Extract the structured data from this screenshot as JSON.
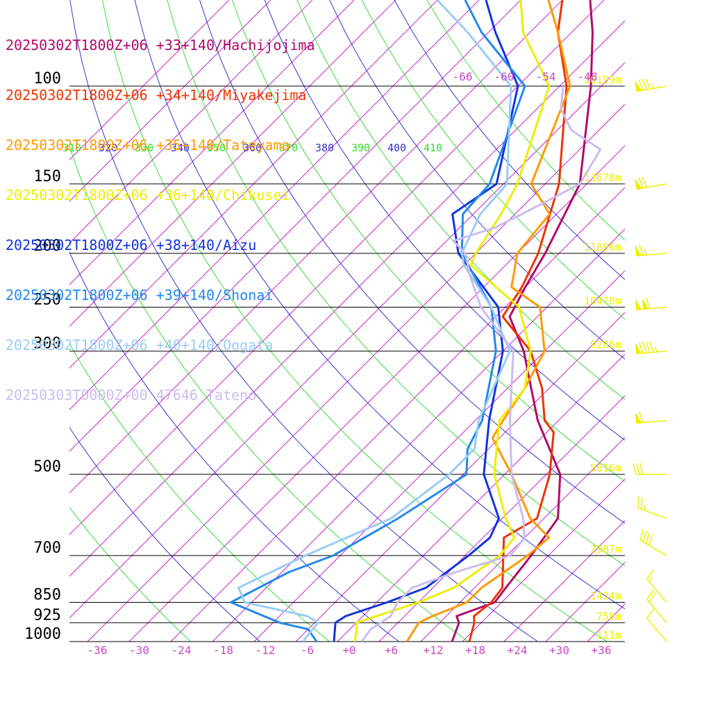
{
  "chart_data": {
    "type": "skew-t",
    "legend": [
      {
        "label": "20250302T1800Z+06 +33+140/Hachijojima",
        "color": "#b0086a"
      },
      {
        "label": "20250302T1800Z+06 +34+140/Miyakejima",
        "color": "#ee3300"
      },
      {
        "label": "20250302T1800Z+06 +35+140/Tateyama",
        "color": "#ff9900"
      },
      {
        "label": "20250302T1800Z+06 +36+140/Chikusei",
        "color": "#eeee00"
      },
      {
        "label": "20250302T1800Z+06 +38+140/Aizu",
        "color": "#1133dd"
      },
      {
        "label": "20250302T1800Z+06 +39+140/Shonai",
        "color": "#2288ee"
      },
      {
        "label": "20250302T1800Z+06 +40+140/Oogata",
        "color": "#99ccf5"
      },
      {
        "label": "20250303T0000Z+00 47646_Tateno",
        "color": "#ccbbee"
      }
    ],
    "pressure_levels": [
      {
        "p": 100,
        "label": "100",
        "height": "16199m"
      },
      {
        "p": 150,
        "label": "150",
        "height": "13678m"
      },
      {
        "p": 200,
        "label": "200",
        "height": "11896m"
      },
      {
        "p": 250,
        "label": "250",
        "height": "10470m"
      },
      {
        "p": 300,
        "label": "300",
        "height": "9286m"
      },
      {
        "p": 500,
        "label": "500",
        "height": "5616m"
      },
      {
        "p": 700,
        "label": "700",
        "height": "2987m"
      },
      {
        "p": 850,
        "label": "850",
        "height": "1434m"
      },
      {
        "p": 925,
        "label": "925",
        "height": "758m"
      },
      {
        "p": 1000,
        "label": "1000",
        "height": "111m"
      }
    ],
    "x_ticks": [
      "-36",
      "-30",
      "-24",
      "-18",
      "-12",
      "-6",
      "+0",
      "+6",
      "+12",
      "+18",
      "+24",
      "+30",
      "+36"
    ],
    "top_isotherm_labels": [
      "-66",
      "-60",
      "-54",
      "-48"
    ],
    "theta_labels": [
      {
        "text": "310",
        "color": "#33dd33"
      },
      {
        "text": "320",
        "color": "#3333cc"
      },
      {
        "text": "330",
        "color": "#33dd33"
      },
      {
        "text": "340",
        "color": "#3333cc"
      },
      {
        "text": "350",
        "color": "#33dd33"
      },
      {
        "text": "360",
        "color": "#3333cc"
      },
      {
        "text": "370",
        "color": "#33dd33"
      },
      {
        "text": "380",
        "color": "#3333cc"
      },
      {
        "text": "390",
        "color": "#33dd33"
      },
      {
        "text": "400",
        "color": "#3333cc"
      },
      {
        "text": "410",
        "color": "#33dd33"
      }
    ],
    "p_range": [
      1000,
      70
    ],
    "t_range": [
      -38,
      38
    ],
    "skew": "isotherms at 45 degrees",
    "grid": true,
    "colors": {
      "isotherm": "#cc22cc",
      "dry_adiabat_a": "#33dd33",
      "dry_adiabat_b": "#3333cc",
      "isobar": "#000000",
      "wind_barb": "#eeee00",
      "height_label": "#eeee00",
      "tick_label": "#cc44cc"
    },
    "profiles": [
      {
        "name": "Hachijojima",
        "color": "#b0086a",
        "points": [
          [
            1000,
            14.5
          ],
          [
            925,
            12.8
          ],
          [
            900,
            11.5
          ],
          [
            850,
            15.0
          ],
          [
            800,
            14.5
          ],
          [
            700,
            13.5
          ],
          [
            600,
            12.0
          ],
          [
            500,
            6.0
          ],
          [
            400,
            -5.0
          ],
          [
            300,
            -17.0
          ],
          [
            260,
            -24.0
          ],
          [
            230,
            -26.0
          ],
          [
            200,
            -28.0
          ],
          [
            150,
            -33.0
          ],
          [
            100,
            -45.5
          ],
          [
            80,
            -53.0
          ],
          [
            70,
            -58.0
          ]
        ]
      },
      {
        "name": "Miyakejima",
        "color": "#ee3300",
        "points": [
          [
            1000,
            17.0
          ],
          [
            925,
            15.0
          ],
          [
            900,
            14.0
          ],
          [
            850,
            14.5
          ],
          [
            800,
            14.0
          ],
          [
            700,
            9.5
          ],
          [
            650,
            7.0
          ],
          [
            600,
            9.0
          ],
          [
            500,
            4.5
          ],
          [
            420,
            -1.0
          ],
          [
            400,
            -4.0
          ],
          [
            350,
            -9.0
          ],
          [
            300,
            -16.0
          ],
          [
            260,
            -25.0
          ],
          [
            230,
            -26.5
          ],
          [
            200,
            -29.0
          ],
          [
            150,
            -36.0
          ],
          [
            100,
            -49.0
          ],
          [
            80,
            -58.0
          ],
          [
            70,
            -62.0
          ]
        ]
      },
      {
        "name": "Tateyama",
        "color": "#ff9900",
        "points": [
          [
            1000,
            8.0
          ],
          [
            925,
            7.0
          ],
          [
            900,
            8.0
          ],
          [
            850,
            11.0
          ],
          [
            800,
            11.0
          ],
          [
            700,
            13.0
          ],
          [
            650,
            13.5
          ],
          [
            600,
            8.0
          ],
          [
            500,
            -1.0
          ],
          [
            430,
            -9.0
          ],
          [
            400,
            -10.0
          ],
          [
            350,
            -11.5
          ],
          [
            300,
            -14.0
          ],
          [
            250,
            -21.0
          ],
          [
            230,
            -28.0
          ],
          [
            200,
            -32.0
          ],
          [
            170,
            -33.0
          ],
          [
            150,
            -40.0
          ],
          [
            100,
            -48.5
          ],
          [
            80,
            -58.0
          ],
          [
            70,
            -64.0
          ]
        ]
      },
      {
        "name": "Chikusei",
        "color": "#eeee00",
        "points": [
          [
            1000,
            0.5
          ],
          [
            950,
            -1.0
          ],
          [
            925,
            -2.0
          ],
          [
            850,
            4.0
          ],
          [
            800,
            7.0
          ],
          [
            700,
            9.0
          ],
          [
            650,
            8.5
          ],
          [
            600,
            4.5
          ],
          [
            500,
            -3.5
          ],
          [
            420,
            -9.0
          ],
          [
            400,
            -10.5
          ],
          [
            350,
            -11.5
          ],
          [
            300,
            -16.0
          ],
          [
            250,
            -24.0
          ],
          [
            210,
            -37.0
          ],
          [
            200,
            -38.0
          ],
          [
            170,
            -40.0
          ],
          [
            150,
            -42.0
          ],
          [
            100,
            -51.5
          ],
          [
            80,
            -63.0
          ],
          [
            70,
            -68.0
          ]
        ]
      },
      {
        "name": "Aizu",
        "color": "#1133dd",
        "points": [
          [
            1000,
            -2.5
          ],
          [
            925,
            -5.0
          ],
          [
            900,
            -4.5
          ],
          [
            850,
            -0.5
          ],
          [
            800,
            3.0
          ],
          [
            700,
            4.5
          ],
          [
            650,
            5.0
          ],
          [
            600,
            3.5
          ],
          [
            500,
            -5.0
          ],
          [
            400,
            -12.0
          ],
          [
            300,
            -20.0
          ],
          [
            250,
            -27.0
          ],
          [
            200,
            -40.5
          ],
          [
            170,
            -47.0
          ],
          [
            150,
            -45.0
          ],
          [
            100,
            -56.0
          ],
          [
            80,
            -67.0
          ],
          [
            70,
            -73.0
          ]
        ]
      },
      {
        "name": "Shonai",
        "color": "#2288ee",
        "points": [
          [
            1000,
            -5.0
          ],
          [
            950,
            -8.0
          ],
          [
            925,
            -13.0
          ],
          [
            850,
            -23.0
          ],
          [
            750,
            -19.0
          ],
          [
            700,
            -15.0
          ],
          [
            600,
            -11.0
          ],
          [
            500,
            -7.5
          ],
          [
            450,
            -11.0
          ],
          [
            400,
            -13.0
          ],
          [
            300,
            -21.0
          ],
          [
            250,
            -28.0
          ],
          [
            200,
            -40.0
          ],
          [
            170,
            -45.5
          ],
          [
            150,
            -46.0
          ],
          [
            100,
            -55.0
          ],
          [
            80,
            -69.0
          ],
          [
            70,
            -76.0
          ]
        ]
      },
      {
        "name": "Oogata",
        "color": "#99ccf5",
        "points": [
          [
            1000,
            -7.0
          ],
          [
            925,
            -7.5
          ],
          [
            900,
            -10.0
          ],
          [
            850,
            -21.0
          ],
          [
            800,
            -24.0
          ],
          [
            700,
            -19.0
          ],
          [
            600,
            -12.0
          ],
          [
            500,
            -10.0
          ],
          [
            450,
            -10.0
          ],
          [
            400,
            -13.5
          ],
          [
            300,
            -19.0
          ],
          [
            250,
            -28.0
          ],
          [
            210,
            -38.0
          ],
          [
            200,
            -40.0
          ],
          [
            170,
            -43.0
          ],
          [
            150,
            -43.5
          ],
          [
            100,
            -57.0
          ],
          [
            80,
            -71.0
          ],
          [
            70,
            -80.0
          ]
        ]
      },
      {
        "name": "47646_Tateno",
        "color": "#ccbbee",
        "points": [
          [
            1000,
            1.5
          ],
          [
            950,
            1.0
          ],
          [
            925,
            1.5
          ],
          [
            900,
            2.0
          ],
          [
            850,
            1.0
          ],
          [
            800,
            1.0
          ],
          [
            750,
            5.0
          ],
          [
            700,
            10.5
          ],
          [
            650,
            10.0
          ],
          [
            600,
            7.0
          ],
          [
            500,
            -1.0
          ],
          [
            400,
            -9.0
          ],
          [
            300,
            -18.5
          ],
          [
            250,
            -29.5
          ],
          [
            220,
            -35.5
          ],
          [
            200,
            -39.5
          ],
          [
            190,
            -43.0
          ],
          [
            180,
            -39.0
          ],
          [
            170,
            -37.0
          ],
          [
            150,
            -33.0
          ],
          [
            130,
            -35.0
          ],
          [
            120,
            -42.0
          ],
          [
            110,
            -46.5
          ],
          [
            100,
            -49.5
          ]
        ]
      }
    ],
    "wind_barbs": [
      {
        "p": 100,
        "speed_kt": 85,
        "dir_deg": 260
      },
      {
        "p": 150,
        "speed_kt": 70,
        "dir_deg": 260
      },
      {
        "p": 200,
        "speed_kt": 65,
        "dir_deg": 265
      },
      {
        "p": 250,
        "speed_kt": 110,
        "dir_deg": 265
      },
      {
        "p": 300,
        "speed_kt": 95,
        "dir_deg": 265
      },
      {
        "p": 400,
        "speed_kt": 60,
        "dir_deg": 265
      },
      {
        "p": 500,
        "speed_kt": 30,
        "dir_deg": 270
      },
      {
        "p": 600,
        "speed_kt": 25,
        "dir_deg": 290
      },
      {
        "p": 700,
        "speed_kt": 40,
        "dir_deg": 300
      },
      {
        "p": 850,
        "speed_kt": 15,
        "dir_deg": 320
      },
      {
        "p": 925,
        "speed_kt": 20,
        "dir_deg": 320
      },
      {
        "p": 1000,
        "speed_kt": 10,
        "dir_deg": 320
      }
    ]
  }
}
